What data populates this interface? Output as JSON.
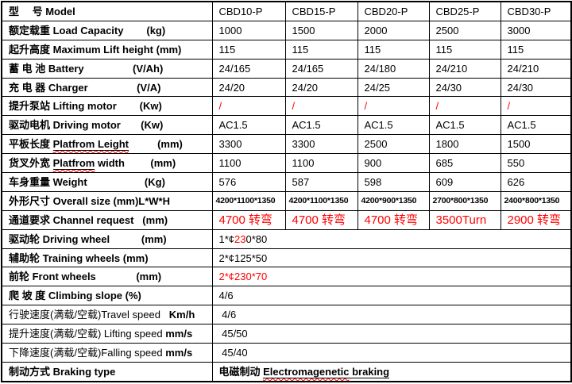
{
  "colors": {
    "red_accent": "#ff0000",
    "border": "#000000",
    "text": "#000000",
    "background": "#ffffff"
  },
  "rows": [
    {
      "name": "model",
      "label": [
        {
          "t": "型　 号 Model",
          "b": true
        }
      ],
      "cells": [
        "CBD10-P",
        "CBD15-P",
        "CBD20-P",
        "CBD25-P",
        "CBD30-P"
      ]
    },
    {
      "name": "load-capacity",
      "label": [
        {
          "t": "额定载重 Load Capacity        (kg)",
          "b": true
        }
      ],
      "cells": [
        "1000",
        "1500",
        "2000",
        "2500",
        "3000"
      ]
    },
    {
      "name": "max-lift-height",
      "label": [
        {
          "t": "起升高度 Maximum Lift height (mm)",
          "b": true
        }
      ],
      "cells": [
        "115",
        "115",
        "115",
        "115",
        "115"
      ]
    },
    {
      "name": "battery",
      "label": [
        {
          "t": "蓄 电 池 Battery                 (V/Ah)",
          "b": true
        }
      ],
      "cells": [
        "24/165",
        "24/165",
        "24/180",
        "24/210",
        "24/210"
      ]
    },
    {
      "name": "charger",
      "label": [
        {
          "t": "充 电 器 Charger                 (V/A)",
          "b": true
        }
      ],
      "cells": [
        "24/20",
        "24/20",
        "24/25",
        "24/30",
        "24/30"
      ]
    },
    {
      "name": "lifting-motor",
      "label": [
        {
          "t": "提升泵站 Lifting motor        (Kw)",
          "b": true
        }
      ],
      "cells": [
        {
          "t": "/",
          "r": true
        },
        {
          "t": "/",
          "r": true
        },
        {
          "t": "/",
          "r": true
        },
        {
          "t": "/",
          "r": true
        },
        {
          "t": "/",
          "r": true
        }
      ]
    },
    {
      "name": "driving-motor",
      "label": [
        {
          "t": "驱动电机 Driving motor       (Kw)",
          "b": true
        }
      ],
      "cells": [
        "AC1.5",
        "AC1.5",
        "AC1.5",
        "AC1.5",
        "AC1.5"
      ]
    },
    {
      "name": "platform-length",
      "label": [
        {
          "t": "平板长度 ",
          "b": true
        },
        {
          "t": "Platfrom Leight",
          "b": true,
          "u": true,
          "w": true
        },
        {
          "t": "          (mm)",
          "b": true
        }
      ],
      "cells": [
        "3300",
        "3300",
        "2500",
        "1800",
        "1500"
      ]
    },
    {
      "name": "platform-width",
      "label": [
        {
          "t": "货叉外宽 ",
          "b": true
        },
        {
          "t": "Platfrom",
          "b": true,
          "u": true,
          "w": true
        },
        {
          "t": " width",
          "b": true
        },
        {
          "t": "         (mm)",
          "b": true
        }
      ],
      "cells": [
        "1100",
        "1100",
        "900",
        "685",
        "550"
      ]
    },
    {
      "name": "weight",
      "label": [
        {
          "t": "车身重量 Weight                    (Kg)",
          "b": true
        }
      ],
      "cells": [
        "576",
        "587",
        "598",
        "609",
        "626"
      ]
    },
    {
      "name": "overall-size",
      "label": [
        {
          "t": "外形尺寸 Overall size (mm)L*W*H",
          "b": true
        }
      ],
      "cell_class": "small",
      "cells": [
        "4200*1100*1350",
        "4200*1100*1350",
        "4200*900*1350",
        "2700*800*1350",
        "2400*800*1350"
      ]
    },
    {
      "name": "channel-request",
      "label": [
        {
          "t": "通道要求 Channel request   (mm)",
          "b": true
        }
      ],
      "cell_class": "channel",
      "cells": [
        {
          "t": "4700 转弯",
          "r": true
        },
        {
          "t": "4700 转弯",
          "r": true
        },
        {
          "t": "4700 转弯",
          "r": true
        },
        {
          "t": "3500Turn",
          "r": true
        },
        {
          "t": "2900 转弯",
          "r": true
        }
      ]
    },
    {
      "name": "driving-wheel",
      "label": [
        {
          "t": "驱动轮 Driving wheel           (mm)",
          "b": true
        }
      ],
      "merged": true,
      "cells": [
        [
          {
            "t": "1*¢"
          },
          {
            "t": "23",
            "r": true
          },
          {
            "t": "0*80"
          }
        ]
      ]
    },
    {
      "name": "training-wheels",
      "label": [
        {
          "t": "辅助轮 Training wheels (mm)",
          "b": true
        }
      ],
      "merged": true,
      "cells": [
        "2*¢125*50"
      ]
    },
    {
      "name": "front-wheels",
      "label": [
        {
          "t": "前轮 Front wheels              (mm)",
          "b": true
        }
      ],
      "merged": true,
      "cells": [
        {
          "t": "2*¢230*70",
          "r": true
        }
      ]
    },
    {
      "name": "climbing-slope",
      "label": [
        {
          "t": "爬 坡 度 Climbing slope (%)",
          "b": true
        }
      ],
      "merged": true,
      "cells": [
        "4/6"
      ]
    },
    {
      "name": "travel-speed",
      "label": [
        {
          "t": "行驶速度(满载/空载)Travel speed   "
        },
        {
          "t": "Km/h",
          "b": true
        }
      ],
      "merged": true,
      "cells": [
        " 4/6"
      ]
    },
    {
      "name": "lifting-speed",
      "label": [
        {
          "t": "提升速度(满载/空载) Lifting speed "
        },
        {
          "t": "mm/s",
          "b": true
        }
      ],
      "merged": true,
      "cells": [
        " 45/50"
      ]
    },
    {
      "name": "falling-speed",
      "label": [
        {
          "t": "下降速度(满载/空载)Falling speed "
        },
        {
          "t": "mm/s",
          "b": true
        }
      ],
      "merged": true,
      "cells": [
        " 45/40"
      ]
    },
    {
      "name": "braking-type",
      "label": [
        {
          "t": "制动方式 Braking type",
          "b": true
        }
      ],
      "merged": true,
      "cells": [
        [
          {
            "t": "电磁制动 ",
            "b": true
          },
          {
            "t": "Electromagenetic",
            "b": true,
            "u": true,
            "w": true
          },
          {
            "t": " braking",
            "b": true,
            "u": true
          }
        ]
      ]
    }
  ]
}
